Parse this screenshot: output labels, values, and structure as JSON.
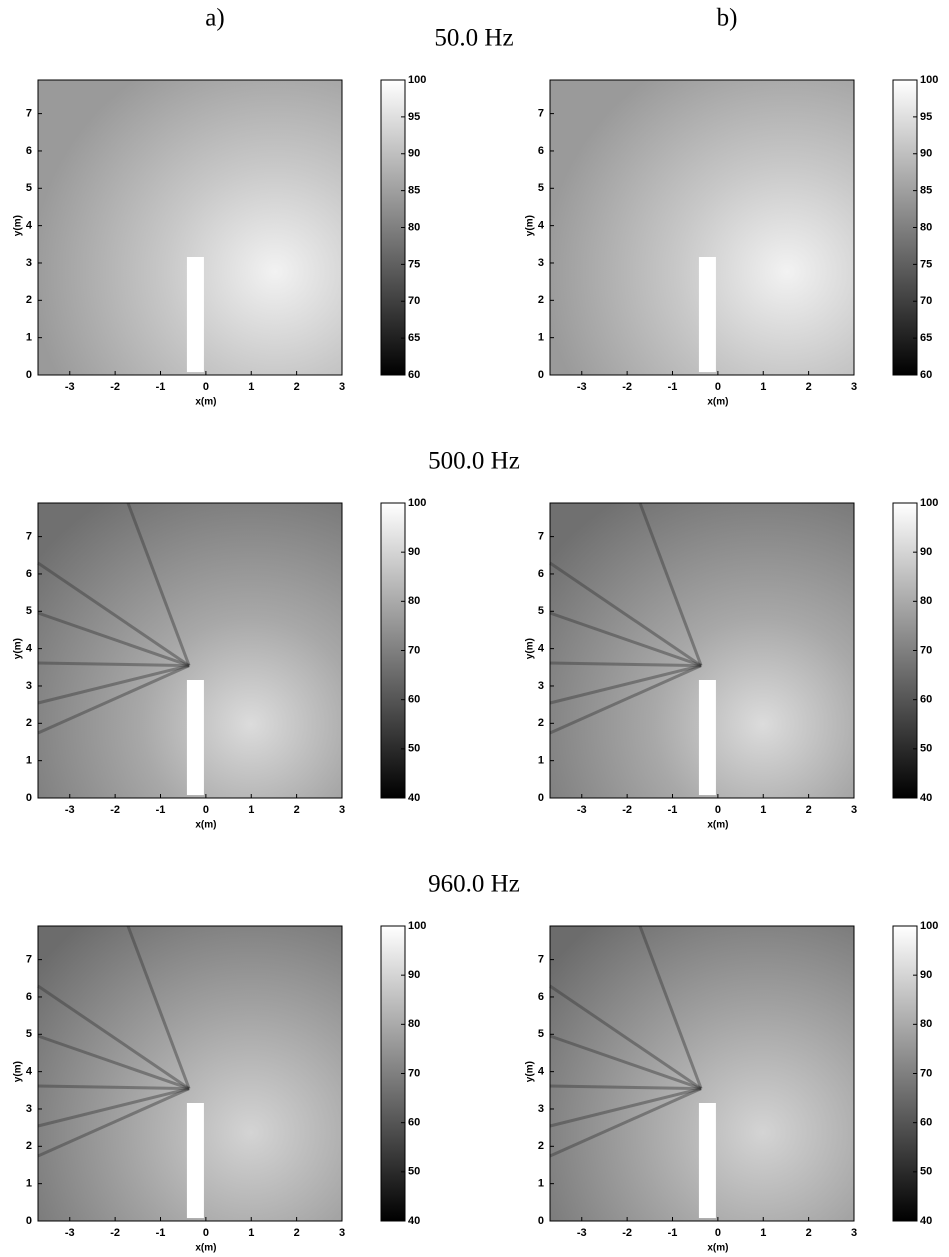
{
  "column_labels": [
    "a)",
    "b)"
  ],
  "row_titles": [
    "50.0 Hz",
    "500.0 Hz",
    "960.0 Hz"
  ],
  "chart_data": [
    {
      "type": "heatmap",
      "xlabel": "x(m)",
      "ylabel": "y(m)",
      "xlim": [
        -3.7,
        3
      ],
      "xticks": [
        -3,
        -2,
        -1,
        0,
        1,
        2,
        3
      ],
      "ylim": [
        0,
        7.9
      ],
      "yticks": [
        0,
        1,
        2,
        3,
        4,
        5,
        6,
        7
      ],
      "clim": [
        60,
        100
      ],
      "cticks": [
        60,
        65,
        70,
        75,
        80,
        85,
        90,
        95,
        100
      ]
    },
    {
      "type": "heatmap",
      "xlabel": "x(m)",
      "ylabel": "y(m)",
      "xlim": [
        -3.7,
        3
      ],
      "xticks": [
        -3,
        -2,
        -1,
        0,
        1,
        2,
        3
      ],
      "ylim": [
        0,
        7.9
      ],
      "yticks": [
        0,
        1,
        2,
        3,
        4,
        5,
        6,
        7
      ],
      "clim": [
        60,
        100
      ],
      "cticks": [
        60,
        65,
        70,
        75,
        80,
        85,
        90,
        95,
        100
      ]
    },
    {
      "type": "heatmap",
      "xlabel": "x(m)",
      "ylabel": "y(m)",
      "xlim": [
        -3.7,
        3
      ],
      "xticks": [
        -3,
        -2,
        -1,
        0,
        1,
        2,
        3
      ],
      "ylim": [
        0,
        7.9
      ],
      "yticks": [
        0,
        1,
        2,
        3,
        4,
        5,
        6,
        7
      ],
      "clim": [
        40,
        100
      ],
      "cticks": [
        40,
        50,
        60,
        70,
        80,
        90,
        100
      ]
    },
    {
      "type": "heatmap",
      "xlabel": "x(m)",
      "ylabel": "y(m)",
      "xlim": [
        -3.7,
        3
      ],
      "xticks": [
        -3,
        -2,
        -1,
        0,
        1,
        2,
        3
      ],
      "ylim": [
        0,
        7.9
      ],
      "yticks": [
        0,
        1,
        2,
        3,
        4,
        5,
        6,
        7
      ],
      "clim": [
        40,
        100
      ],
      "cticks": [
        40,
        50,
        60,
        70,
        80,
        90,
        100
      ]
    },
    {
      "type": "heatmap",
      "xlabel": "x(m)",
      "ylabel": "y(m)",
      "xlim": [
        -3.7,
        3
      ],
      "xticks": [
        -3,
        -2,
        -1,
        0,
        1,
        2,
        3
      ],
      "ylim": [
        0,
        7.9
      ],
      "yticks": [
        0,
        1,
        2,
        3,
        4,
        5,
        6,
        7
      ],
      "clim": [
        40,
        100
      ],
      "cticks": [
        40,
        50,
        60,
        70,
        80,
        90,
        100
      ]
    },
    {
      "type": "heatmap",
      "xlabel": "x(m)",
      "ylabel": "y(m)",
      "xlim": [
        -3.7,
        3
      ],
      "xticks": [
        -3,
        -2,
        -1,
        0,
        1,
        2,
        3
      ],
      "ylim": [
        0,
        7.9
      ],
      "yticks": [
        0,
        1,
        2,
        3,
        4,
        5,
        6,
        7
      ],
      "clim": [
        40,
        100
      ],
      "cticks": [
        40,
        50,
        60,
        70,
        80,
        90,
        100
      ]
    }
  ]
}
